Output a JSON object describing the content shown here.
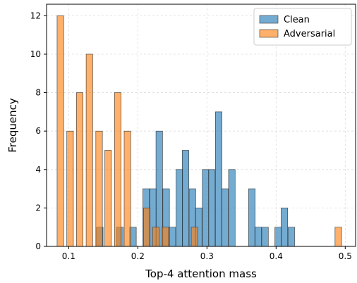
{
  "chart_data": {
    "type": "bar",
    "subtype": "overlaid-histogram",
    "title": "",
    "xlabel": "Top-4 attention mass",
    "ylabel": "Frequency",
    "xlim": [
      0.068,
      0.515
    ],
    "ylim": [
      0,
      12.6
    ],
    "xticks": [
      0.1,
      0.2,
      0.3,
      0.4,
      0.5
    ],
    "yticks": [
      0,
      2,
      4,
      6,
      8,
      10,
      12
    ],
    "grid": true,
    "legend_position": "top-right",
    "bin_width": 0.0095,
    "series": [
      {
        "name": "Clean",
        "color": "#1f77b4",
        "bins": [
          {
            "x": 0.145,
            "count": 1
          },
          {
            "x": 0.174,
            "count": 1
          },
          {
            "x": 0.193,
            "count": 1
          },
          {
            "x": 0.212,
            "count": 3
          },
          {
            "x": 0.222,
            "count": 3
          },
          {
            "x": 0.231,
            "count": 6
          },
          {
            "x": 0.241,
            "count": 3
          },
          {
            "x": 0.25,
            "count": 1
          },
          {
            "x": 0.26,
            "count": 4
          },
          {
            "x": 0.269,
            "count": 5
          },
          {
            "x": 0.279,
            "count": 3
          },
          {
            "x": 0.288,
            "count": 2
          },
          {
            "x": 0.298,
            "count": 4
          },
          {
            "x": 0.307,
            "count": 4
          },
          {
            "x": 0.317,
            "count": 7
          },
          {
            "x": 0.326,
            "count": 3
          },
          {
            "x": 0.336,
            "count": 4
          },
          {
            "x": 0.365,
            "count": 3
          },
          {
            "x": 0.374,
            "count": 1
          },
          {
            "x": 0.384,
            "count": 1
          },
          {
            "x": 0.403,
            "count": 1
          },
          {
            "x": 0.412,
            "count": 2
          },
          {
            "x": 0.422,
            "count": 1
          }
        ]
      },
      {
        "name": "Adversarial",
        "color": "#ff7f0e",
        "bins": [
          {
            "x": 0.088,
            "count": 12
          },
          {
            "x": 0.102,
            "count": 6
          },
          {
            "x": 0.116,
            "count": 8
          },
          {
            "x": 0.13,
            "count": 10
          },
          {
            "x": 0.144,
            "count": 6
          },
          {
            "x": 0.157,
            "count": 5
          },
          {
            "x": 0.171,
            "count": 8
          },
          {
            "x": 0.185,
            "count": 6
          },
          {
            "x": 0.213,
            "count": 2
          },
          {
            "x": 0.226,
            "count": 1
          },
          {
            "x": 0.24,
            "count": 1
          },
          {
            "x": 0.282,
            "count": 1
          },
          {
            "x": 0.49,
            "count": 1
          }
        ]
      }
    ]
  }
}
